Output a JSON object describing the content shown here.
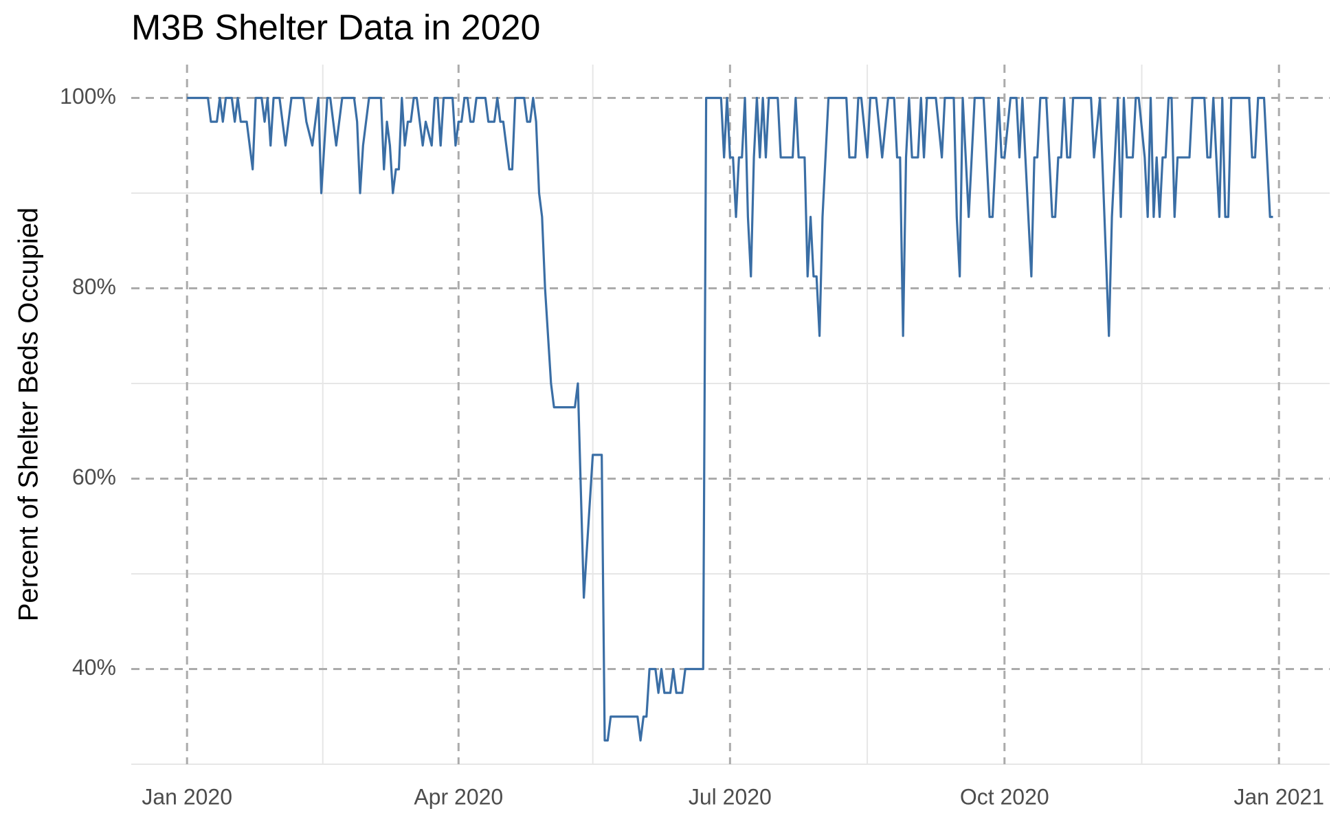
{
  "chart_data": {
    "type": "line",
    "title": "M3B Shelter Data in 2020",
    "ylabel": "Percent of Shelter Beds Occupied",
    "xlim": [
      -18.7,
      383
    ],
    "xticks": [
      {
        "value": 0,
        "label": "Jan 2020"
      },
      {
        "value": 91,
        "label": "Apr 2020"
      },
      {
        "value": 182,
        "label": "Jul 2020"
      },
      {
        "value": 274,
        "label": "Oct 2020"
      },
      {
        "value": 366,
        "label": "Jan 2021"
      }
    ],
    "xminorticks": [
      45.5,
      136,
      228,
      320
    ],
    "ylim": [
      30,
      103.5
    ],
    "yticks": [
      {
        "value": 40,
        "label": "40%"
      },
      {
        "value": 60,
        "label": "60%"
      },
      {
        "value": 80,
        "label": "80%"
      },
      {
        "value": 100,
        "label": "100%"
      }
    ],
    "yminorticks": [
      30,
      50,
      70,
      90
    ],
    "grid": true,
    "x": [
      0,
      7,
      8,
      10,
      11,
      12,
      13,
      15,
      16,
      17,
      18,
      20,
      22,
      23,
      25,
      26,
      27,
      28,
      29,
      31,
      32,
      33,
      35,
      39,
      40,
      42,
      44,
      45,
      47,
      48,
      49,
      50,
      52,
      56,
      57,
      58,
      59,
      61,
      65,
      66,
      67,
      68,
      69,
      70,
      71,
      72,
      73,
      74,
      75,
      76,
      77,
      79,
      80,
      82,
      83,
      84,
      85,
      86,
      89,
      90,
      91,
      92,
      93,
      94,
      95,
      96,
      97,
      100,
      101,
      103,
      104,
      105,
      106,
      108,
      109,
      110,
      113,
      114,
      115,
      116,
      117,
      118,
      119,
      120,
      122,
      123,
      130,
      131,
      133,
      136,
      139,
      140,
      141,
      142,
      151,
      152,
      153,
      154,
      155,
      157,
      158,
      159,
      160,
      162,
      163,
      164,
      166,
      167,
      173,
      174,
      179,
      180,
      181,
      182,
      183,
      184,
      185,
      186,
      187,
      188,
      189,
      190,
      191,
      192,
      193,
      194,
      195,
      198,
      199,
      203,
      204,
      205,
      207,
      208,
      209,
      210,
      211,
      212,
      213,
      215,
      221,
      222,
      224,
      225,
      226,
      228,
      229,
      231,
      233,
      235,
      237,
      238,
      239,
      240,
      241,
      242,
      243,
      245,
      246,
      247,
      248,
      251,
      253,
      254,
      257,
      258,
      259,
      260,
      262,
      264,
      267,
      269,
      270,
      272,
      273,
      274,
      276,
      278,
      279,
      280,
      283,
      284,
      285,
      286,
      288,
      289,
      290,
      291,
      292,
      293,
      294,
      295,
      296,
      297,
      303,
      304,
      306,
      309,
      310,
      312,
      313,
      314,
      315,
      317,
      318,
      319,
      321,
      322,
      323,
      324,
      325,
      326,
      327,
      328,
      329,
      330,
      331,
      332,
      336,
      337,
      341,
      342,
      343,
      344,
      346,
      347,
      348,
      349,
      350,
      356,
      357,
      358,
      359,
      361,
      362,
      363,
      364
    ],
    "series": [
      {
        "color": "#3a6ea5",
        "values": [
          100,
          100,
          97.5,
          97.5,
          100,
          97.5,
          100,
          100,
          97.5,
          100,
          97.5,
          97.5,
          92.5,
          100,
          100,
          97.5,
          100,
          95,
          100,
          100,
          97.5,
          95,
          100,
          100,
          97.5,
          95,
          100,
          90,
          100,
          100,
          97.5,
          95,
          100,
          100,
          97.5,
          90,
          95,
          100,
          100,
          92.5,
          97.5,
          95,
          90,
          92.5,
          92.5,
          100,
          95,
          97.5,
          97.5,
          100,
          100,
          95,
          97.5,
          95,
          100,
          100,
          95,
          100,
          100,
          95,
          97.5,
          97.5,
          100,
          100,
          97.5,
          97.5,
          100,
          100,
          97.5,
          97.5,
          100,
          97.5,
          97.5,
          92.5,
          92.5,
          100,
          100,
          97.5,
          97.5,
          100,
          97.5,
          90,
          87.5,
          80,
          70,
          67.5,
          67.5,
          70,
          47.5,
          62.5,
          62.5,
          32.5,
          32.5,
          35,
          35,
          32.5,
          35,
          35,
          40,
          40,
          37.5,
          40,
          37.5,
          37.5,
          40,
          37.5,
          37.5,
          40,
          40,
          100,
          100,
          93.75,
          100,
          93.75,
          93.75,
          87.5,
          93.75,
          93.75,
          100,
          87.5,
          81.25,
          93.75,
          100,
          93.75,
          100,
          93.75,
          100,
          100,
          93.75,
          93.75,
          100,
          93.75,
          93.75,
          81.25,
          87.5,
          81.25,
          81.25,
          75,
          87.5,
          100,
          100,
          93.75,
          93.75,
          100,
          100,
          93.75,
          100,
          100,
          93.75,
          100,
          100,
          93.75,
          93.75,
          75,
          93.75,
          100,
          93.75,
          93.75,
          100,
          93.75,
          100,
          100,
          93.75,
          100,
          100,
          87.5,
          81.25,
          100,
          87.5,
          100,
          100,
          87.5,
          87.5,
          100,
          93.75,
          93.75,
          100,
          100,
          93.75,
          100,
          81.25,
          93.75,
          93.75,
          100,
          100,
          93.75,
          87.5,
          87.5,
          93.75,
          93.75,
          100,
          93.75,
          93.75,
          100,
          100,
          93.75,
          100,
          75,
          87.5,
          100,
          87.5,
          100,
          93.75,
          93.75,
          100,
          100,
          93.75,
          87.5,
          100,
          87.5,
          93.75,
          87.5,
          93.75,
          93.75,
          100,
          100,
          87.5,
          93.75,
          93.75,
          100,
          100,
          93.75,
          93.75,
          100,
          87.5,
          100,
          87.5,
          87.5,
          100,
          100,
          93.75,
          93.75,
          100,
          100,
          93.75,
          87.5,
          87.5
        ]
      }
    ]
  }
}
